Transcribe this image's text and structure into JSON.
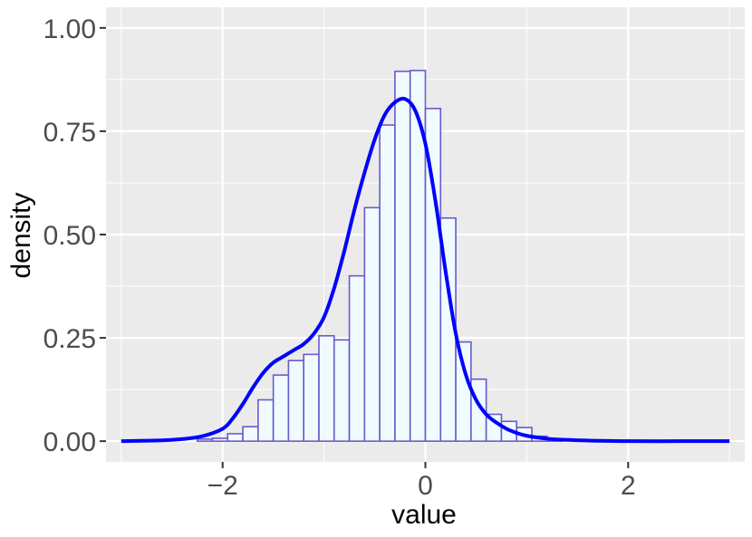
{
  "chart_data": {
    "type": "bar",
    "subtype": "histogram-with-density-curve",
    "xlabel": "value",
    "ylabel": "density",
    "xlim": [
      -3.15,
      3.15
    ],
    "ylim": [
      -0.05,
      1.05
    ],
    "x_ticks": [
      -2,
      0,
      2
    ],
    "x_tick_labels": [
      "−2",
      "0",
      "2"
    ],
    "y_ticks": [
      0,
      0.25,
      0.5,
      0.75,
      1.0
    ],
    "y_tick_labels": [
      "0.00",
      "0.25",
      "0.50",
      "0.75",
      "1.00"
    ],
    "grid": true,
    "legend": "none",
    "histogram": {
      "bin_width": 0.15,
      "bin_starts": [
        -2.25,
        -2.1,
        -1.95,
        -1.8,
        -1.65,
        -1.5,
        -1.35,
        -1.2,
        -1.05,
        -0.9,
        -0.75,
        -0.6,
        -0.45,
        -0.3,
        -0.15,
        0.0,
        0.15,
        0.3,
        0.45,
        0.6,
        0.75,
        0.9,
        1.05,
        1.2
      ],
      "values": [
        0.005,
        0.007,
        0.018,
        0.035,
        0.1,
        0.16,
        0.195,
        0.21,
        0.255,
        0.245,
        0.4,
        0.565,
        0.765,
        0.895,
        0.897,
        0.805,
        0.54,
        0.24,
        0.15,
        0.065,
        0.048,
        0.033,
        0.012,
        0.006
      ]
    },
    "density_curve": {
      "x": [
        -3.0,
        -2.6,
        -2.4,
        -2.2,
        -2.0,
        -1.9,
        -1.8,
        -1.7,
        -1.6,
        -1.5,
        -1.4,
        -1.3,
        -1.2,
        -1.1,
        -1.0,
        -0.9,
        -0.8,
        -0.7,
        -0.6,
        -0.5,
        -0.4,
        -0.3,
        -0.2,
        -0.1,
        0.0,
        0.1,
        0.2,
        0.3,
        0.4,
        0.5,
        0.6,
        0.7,
        0.8,
        0.9,
        1.0,
        1.2,
        1.4,
        1.7,
        2.0,
        2.5,
        3.0
      ],
      "y": [
        0.0,
        0.002,
        0.005,
        0.012,
        0.03,
        0.055,
        0.09,
        0.13,
        0.165,
        0.19,
        0.205,
        0.22,
        0.235,
        0.26,
        0.3,
        0.37,
        0.46,
        0.56,
        0.65,
        0.73,
        0.79,
        0.82,
        0.828,
        0.8,
        0.72,
        0.58,
        0.41,
        0.26,
        0.16,
        0.1,
        0.065,
        0.045,
        0.03,
        0.02,
        0.013,
        0.006,
        0.003,
        0.001,
        0.0,
        0.0,
        0.0
      ]
    },
    "colors": {
      "panel_background": "#ebebeb",
      "grid_major": "#ffffff",
      "bar_fill": "#f0fbff",
      "bar_stroke": "#6a5acd",
      "curve": "#0000ff"
    }
  }
}
